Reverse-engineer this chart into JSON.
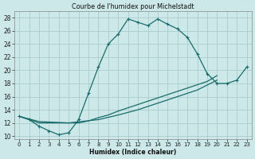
{
  "title": "Courbe de l'humidex pour Michelstadt",
  "xlabel": "Humidex (Indice chaleur)",
  "xlim": [
    -0.5,
    23.5
  ],
  "ylim": [
    9.5,
    29.0
  ],
  "xtick_labels": [
    "0",
    "1",
    "2",
    "3",
    "4",
    "5",
    "6",
    "7",
    "8",
    "9",
    "10",
    "11",
    "12",
    "13",
    "14",
    "15",
    "16",
    "17",
    "18",
    "19",
    "20",
    "21",
    "22",
    "23"
  ],
  "ytick_values": [
    10,
    12,
    14,
    16,
    18,
    20,
    22,
    24,
    26,
    28
  ],
  "background_color": "#cce8e8",
  "grid_color": "#aacccc",
  "line_color": "#1a6b6b",
  "line1_x": [
    0,
    1,
    2,
    3,
    4,
    5,
    6,
    7,
    8,
    9,
    10,
    11,
    12,
    13,
    14,
    15,
    16,
    17,
    18
  ],
  "line1_y": [
    13,
    12.5,
    11.5,
    10.8,
    10.2,
    10.5,
    12.5,
    16.5,
    20.5,
    24.0,
    25.5,
    27.8,
    27.3,
    26.8,
    27.8,
    27.0,
    26.3,
    25.0,
    22.5
  ],
  "line2_x": [
    0,
    1,
    2,
    3,
    4,
    5,
    6,
    7,
    8,
    9,
    10,
    11,
    12,
    13,
    14,
    15,
    16,
    17,
    18,
    19,
    20,
    21,
    22,
    23
  ],
  "line2_y": [
    13,
    12.5,
    12,
    12,
    12,
    12,
    12,
    12.3,
    12.8,
    13.2,
    13.8,
    14.3,
    14.8,
    15.3,
    15.8,
    16.3,
    16.8,
    17.3,
    17.8,
    18.3,
    19.2,
    null,
    null,
    null
  ],
  "line3_x": [
    0,
    2,
    5,
    8,
    10,
    12,
    14,
    16,
    18,
    20,
    22,
    23
  ],
  "line3_y": [
    13,
    12.2,
    12,
    12.5,
    13.2,
    14,
    15,
    16,
    17,
    18.5,
    null,
    null
  ],
  "line4_x": [
    19,
    20,
    21,
    22,
    23
  ],
  "line4_y": [
    19.5,
    18.0,
    18.0,
    18.5,
    20.5
  ]
}
